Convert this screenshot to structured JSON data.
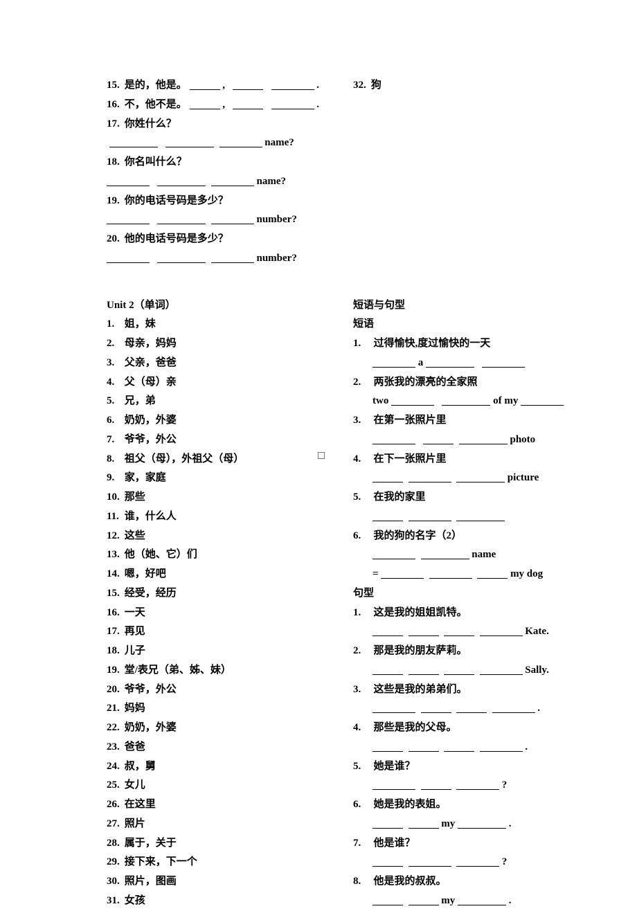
{
  "top_left": {
    "q15": {
      "num": "15.",
      "text": "是的，他是。",
      "tail1": ",",
      "tail2": "."
    },
    "q16": {
      "num": "16.",
      "text": "不，他不是。",
      "tail1": ",",
      "tail2": "."
    },
    "q17": {
      "num": "17.",
      "text": "你姓什么？",
      "tail": " name?"
    },
    "q18": {
      "num": "18.",
      "text": "你名叫什么？",
      "tail": " name?"
    },
    "q19": {
      "num": "19.",
      "text": "你的电话号码是多少？",
      "tail": " number?"
    },
    "q20": {
      "num": "20.",
      "text": "他的电话号码是多少？",
      "tail": " number?"
    }
  },
  "top_right": {
    "q32": {
      "num": "32.",
      "text": "狗"
    }
  },
  "unit2_title": "Unit 2（单词）",
  "unit2_words": [
    {
      "num": "1.",
      "text": "姐，妹"
    },
    {
      "num": "2.",
      "text": "母亲，妈妈"
    },
    {
      "num": "3.",
      "text": "父亲，爸爸"
    },
    {
      "num": "4.",
      "text": "父（母）亲"
    },
    {
      "num": "5.",
      "text": "兄，弟"
    },
    {
      "num": "6.",
      "text": "奶奶，外婆"
    },
    {
      "num": "7.",
      "text": "爷爷，外公"
    },
    {
      "num": "8.",
      "text": "祖父（母），外祖父（母）"
    },
    {
      "num": "9.",
      "text": "家，家庭"
    },
    {
      "num": "10.",
      "text": "那些"
    },
    {
      "num": "11.",
      "text": "谁，什么人"
    },
    {
      "num": "12.",
      "text": "这些"
    },
    {
      "num": "13.",
      "text": "他（她、它）们"
    },
    {
      "num": "14.",
      "text": "嗯，好吧"
    },
    {
      "num": "15.",
      "text": "经受，经历"
    },
    {
      "num": "16.",
      "text": "一天"
    },
    {
      "num": "17.",
      "text": "再见"
    },
    {
      "num": "18.",
      "text": "儿子"
    },
    {
      "num": "19.",
      "text": "堂/表兄（弟、姊、妹）"
    },
    {
      "num": "20.",
      "text": "爷爷，外公"
    },
    {
      "num": "21.",
      "text": "妈妈"
    },
    {
      "num": "22.",
      "text": "奶奶，外婆"
    },
    {
      "num": "23.",
      "text": "爸爸"
    },
    {
      "num": "24.",
      "text": "叔，舅"
    },
    {
      "num": "25.",
      "text": "女儿"
    },
    {
      "num": "26.",
      "text": "在这里"
    },
    {
      "num": "27.",
      "text": "照片"
    },
    {
      "num": "28.",
      "text": "属于，关于"
    },
    {
      "num": "29.",
      "text": "接下来，下一个"
    },
    {
      "num": "30.",
      "text": "照片，图画"
    },
    {
      "num": "31.",
      "text": "女孩"
    }
  ],
  "right_section": {
    "heading1": "短语与句型",
    "heading2": "短语",
    "phrases": {
      "p1": {
        "num": "1.",
        "text": "过得愉快,度过愉快的一天",
        "mid": " a "
      },
      "p2": {
        "num": "2.",
        "text": "两张我的漂亮的全家照",
        "pre": "two ",
        "mid": " of my "
      },
      "p3": {
        "num": "3.",
        "text": "在第一张照片里",
        "tail": " photo"
      },
      "p4": {
        "num": "4.",
        "text": "在下一张照片里",
        "tail": " picture"
      },
      "p5": {
        "num": "5.",
        "text": "在我的家里"
      },
      "p6": {
        "num": "6.",
        "text": "我的狗的名字（2）",
        "tail": " name",
        "line2pre": "= ",
        "line2tail": " my dog"
      }
    },
    "heading3": "句型",
    "sentences": {
      "s1": {
        "num": "1.",
        "text": "这是我的姐姐凯特。",
        "tail": " Kate."
      },
      "s2": {
        "num": "2.",
        "text": "那是我的朋友萨莉。",
        "tail": " Sally."
      },
      "s3": {
        "num": "3.",
        "text": "这些是我的弟弟们。",
        "tail": " ."
      },
      "s4": {
        "num": "4.",
        "text": "那些是我的父母。",
        "tail": "."
      },
      "s5": {
        "num": "5.",
        "text": "她是谁？",
        "tail": "?"
      },
      "s6": {
        "num": "6.",
        "text": "她是我的表姐。",
        "mid": " my ",
        "tail": "."
      },
      "s7": {
        "num": "7.",
        "text": "他是谁？",
        "tail": "?"
      },
      "s8": {
        "num": "8.",
        "text": "他是我的叔叔。",
        "mid": " my ",
        "tail": "."
      }
    }
  }
}
